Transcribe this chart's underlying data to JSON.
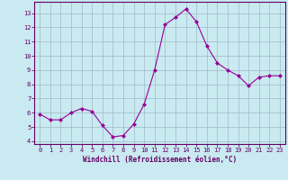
{
  "x": [
    0,
    1,
    2,
    3,
    4,
    5,
    6,
    7,
    8,
    9,
    10,
    11,
    12,
    13,
    14,
    15,
    16,
    17,
    18,
    19,
    20,
    21,
    22,
    23
  ],
  "y": [
    5.9,
    5.5,
    5.5,
    6.0,
    6.3,
    6.1,
    5.1,
    4.3,
    4.4,
    5.2,
    6.6,
    9.0,
    12.2,
    12.7,
    13.3,
    12.4,
    10.7,
    9.5,
    9.0,
    8.6,
    7.9,
    8.5,
    8.6,
    8.6
  ],
  "line_color": "#990099",
  "marker": "D",
  "marker_size": 2,
  "bg_color": "#c8eaf0",
  "grid_color": "#a0b8c8",
  "xlabel": "Windchill (Refroidissement éolien,°C)",
  "ylabel_ticks": [
    4,
    5,
    6,
    7,
    8,
    9,
    10,
    11,
    12,
    13
  ],
  "ylim": [
    3.8,
    13.8
  ],
  "xlim": [
    -0.5,
    23.5
  ],
  "axis_color": "#660066",
  "tick_color": "#660066",
  "label_color": "#660066",
  "font_family": "monospace",
  "tick_fontsize": 5.0,
  "label_fontsize": 5.5
}
